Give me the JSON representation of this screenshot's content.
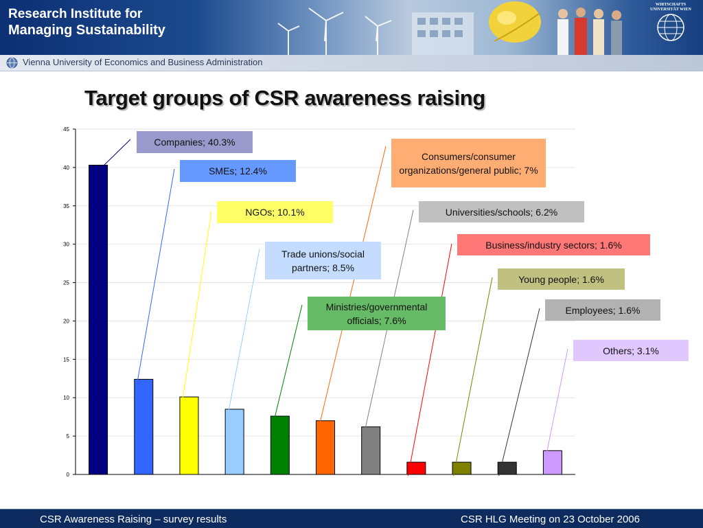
{
  "header": {
    "institute_line1": "Research Institute for",
    "institute_line2": "Managing Sustainability",
    "university": "Vienna University of Economics and Business Administration",
    "seal_text": "WIRTSCHAFTS UNIVERSITÄT WIEN"
  },
  "title": "Target groups of CSR awareness raising",
  "chart_data": {
    "type": "bar",
    "title": "",
    "xlabel": "",
    "ylabel": "",
    "ylim": [
      0,
      45
    ],
    "y_ticks": [
      "0",
      "5",
      "10",
      "15",
      "20",
      "25",
      "30",
      "35",
      "40",
      "45"
    ],
    "grid": true,
    "categories": [
      "Companies",
      "SMEs",
      "NGOs",
      "Trade unions/social partners",
      "Ministries/governmental officials",
      "Consumers/consumer organizations/general public",
      "Universities/schools",
      "Business/industry sectors",
      "Young people",
      "Employees",
      "Others"
    ],
    "values": [
      40.3,
      12.4,
      10.1,
      8.5,
      7.6,
      7.0,
      6.2,
      1.6,
      1.6,
      1.6,
      3.1
    ],
    "bar_colors": [
      "#000080",
      "#3366ff",
      "#ffff00",
      "#99ccff",
      "#008000",
      "#ff6600",
      "#808080",
      "#ff0000",
      "#808000",
      "#333333",
      "#cc99ff"
    ],
    "callouts": [
      {
        "label": "Companies; 40.3%",
        "bg": "#9999cc",
        "line": "#000080"
      },
      {
        "label": "SMEs; 12.4%",
        "bg": "#6699ff",
        "line": "#3366ff"
      },
      {
        "label": "NGOs; 10.1%",
        "bg": "#ffff66",
        "line": "#ffff00"
      },
      {
        "label": "Trade unions/social partners; 8.5%",
        "bg": "#c4ddff",
        "line": "#99ccff"
      },
      {
        "label": "Ministries/governmental officials; 7.6%",
        "bg": "#66bb66",
        "line": "#008000"
      },
      {
        "label": "Consumers/consumer organizations/general public; 7%",
        "bg": "#ffad73",
        "line": "#ff6600"
      },
      {
        "label": "Universities/schools; 6.2%",
        "bg": "#c0c0c0",
        "line": "#808080"
      },
      {
        "label": "Business/industry sectors; 1.6%",
        "bg": "#ff7777",
        "line": "#ff0000"
      },
      {
        "label": "Young people; 1.6%",
        "bg": "#c0c080",
        "line": "#808000"
      },
      {
        "label": "Employees; 1.6%",
        "bg": "#b2b2b2",
        "line": "#333333"
      },
      {
        "label": "Others; 3.1%",
        "bg": "#e0c8ff",
        "line": "#cc99ff"
      }
    ]
  },
  "footer": {
    "left": "CSR Awareness Raising – survey results",
    "right": "CSR HLG Meeting on 23 October 2006"
  }
}
